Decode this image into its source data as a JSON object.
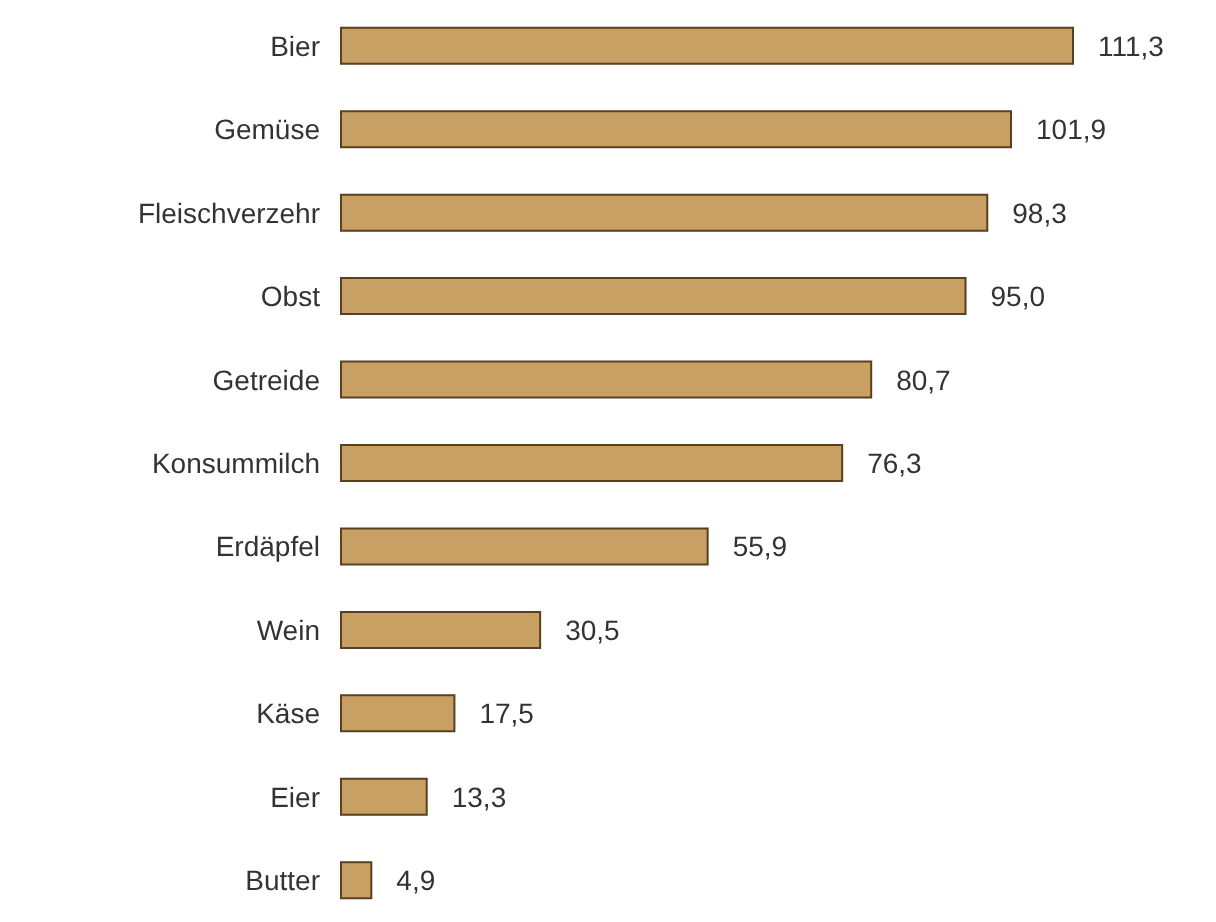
{
  "chart_data": {
    "type": "bar",
    "orientation": "horizontal",
    "categories": [
      "Bier",
      "Gemüse",
      "Fleischverzehr",
      "Obst",
      "Getreide",
      "Konsummilch",
      "Erdäpfel",
      "Wein",
      "Käse",
      "Eier",
      "Butter"
    ],
    "values": [
      111.3,
      101.9,
      98.3,
      95.0,
      80.7,
      76.3,
      55.9,
      30.5,
      17.5,
      13.3,
      4.9
    ],
    "value_labels": [
      "111,3",
      "101,9",
      "98,3",
      "95,0",
      "80,7",
      "76,3",
      "55,9",
      "30,5",
      "17,5",
      "13,3",
      "4,9"
    ],
    "color": "#c9a063"
  }
}
